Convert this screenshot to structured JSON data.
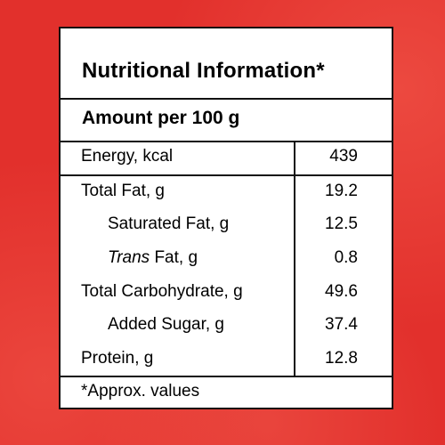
{
  "background_color": "#e2302c",
  "panel": {
    "title": "Nutritional Information*",
    "amount_header": "Amount per 100 g",
    "rows": [
      {
        "label": "Energy, kcal",
        "value": "439"
      },
      {
        "label": "Total Fat, g",
        "value": "19.2"
      },
      {
        "label": "Saturated Fat, g",
        "value": "12.5"
      },
      {
        "label_italic": "Trans",
        "label": " Fat, g",
        "value": "0.8"
      },
      {
        "label": "Total Carbohydrate, g",
        "value": "49.6"
      },
      {
        "label": "Added Sugar, g",
        "value": "37.4"
      },
      {
        "label": "Protein, g",
        "value": "12.8"
      }
    ],
    "footnote": "*Approx. values"
  }
}
